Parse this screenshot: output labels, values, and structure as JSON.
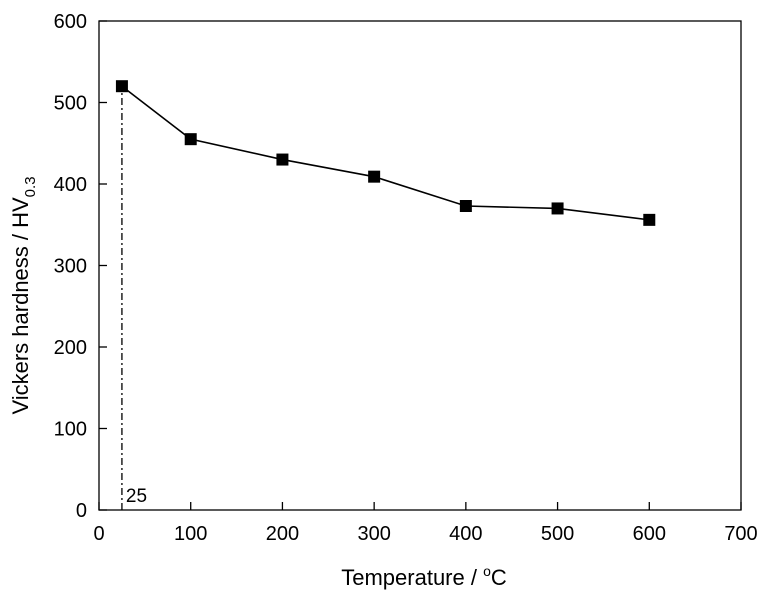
{
  "chart_data": {
    "type": "line",
    "title": "",
    "xlabel": "Temperature / °C",
    "xlabel_parts": {
      "pre": "Temperature / ",
      "sup": "o",
      "post": "C"
    },
    "ylabel": "Vickers hardness / HV0.3",
    "ylabel_parts": {
      "pre": "Vickers hardness / HV",
      "sub": "0.3"
    },
    "xlim": [
      0,
      700
    ],
    "ylim": [
      0,
      600
    ],
    "xticks": [
      0,
      100,
      200,
      300,
      400,
      500,
      600,
      700
    ],
    "yticks": [
      0,
      100,
      200,
      300,
      400,
      500,
      600
    ],
    "grid": false,
    "marker": "square",
    "color": "#000000",
    "series": [
      {
        "x": [
          25,
          100,
          200,
          300,
          400,
          500,
          600
        ],
        "y": [
          520,
          455,
          430,
          409,
          373,
          370,
          356
        ]
      }
    ],
    "annotations": [
      {
        "text": "25",
        "x": 25,
        "style": "dash-dot vertical line"
      }
    ]
  }
}
